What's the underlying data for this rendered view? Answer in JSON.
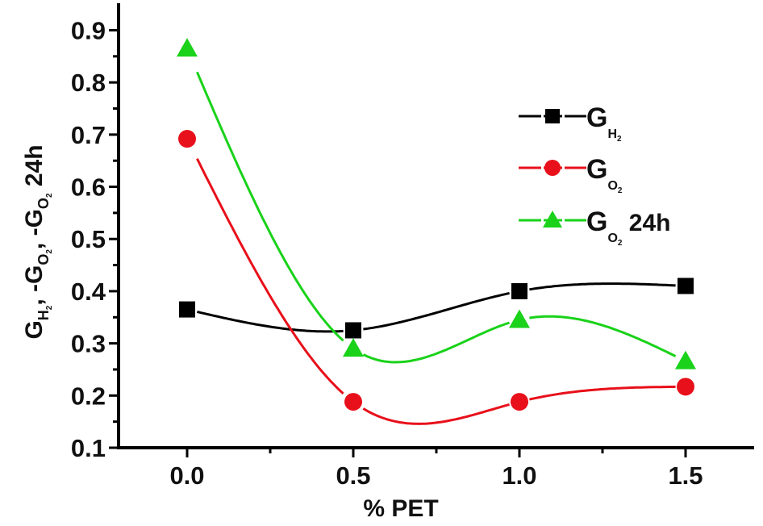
{
  "chart_data": {
    "type": "line",
    "xlabel": "% PET",
    "ylabel_parts": {
      "g1": "G",
      "s1": "H",
      "ss1": "2",
      "sep1": ", -G",
      "s2": "O",
      "ss2": "2",
      "sep2": ", -G",
      "s3": "O",
      "ss3": "2",
      "tail": " 24h"
    },
    "xlim": [
      -0.2,
      1.7
    ],
    "ylim": [
      0.1,
      0.95
    ],
    "x_ticks": [
      "0.0",
      "0.5",
      "1.0",
      "1.5"
    ],
    "y_ticks": [
      "0.1",
      "0.2",
      "0.3",
      "0.4",
      "0.5",
      "0.6",
      "0.7",
      "0.8",
      "0.9"
    ],
    "x": [
      0.0,
      0.5,
      1.0,
      1.5
    ],
    "legend_position": "top-right",
    "grid": false,
    "smoothed": true,
    "series": [
      {
        "name": "G",
        "sub": "H",
        "subsub": "2",
        "suffix": "",
        "marker": "square",
        "color": "#000000",
        "values": [
          0.365,
          0.325,
          0.4,
          0.41
        ]
      },
      {
        "name": "G",
        "sub": "O",
        "subsub": "2",
        "suffix": "",
        "marker": "circle",
        "color": "#e8101a",
        "values": [
          0.692,
          0.188,
          0.188,
          0.217
        ]
      },
      {
        "name": "G",
        "sub": "O",
        "subsub": "2",
        "suffix": " 24h",
        "marker": "triangle",
        "color": "#19d219",
        "values": [
          0.865,
          0.29,
          0.345,
          0.266
        ]
      }
    ]
  }
}
